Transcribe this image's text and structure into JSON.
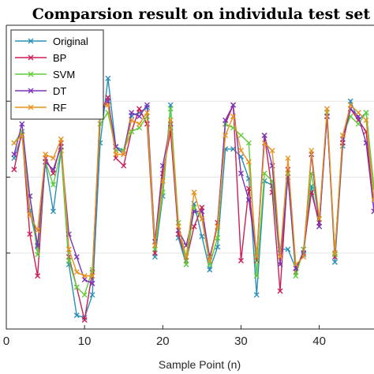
{
  "chart_data": {
    "type": "line",
    "title": "Comparsion result on individula test set",
    "xlabel": "Sample Point (n)",
    "ylabel": "",
    "xlim": [
      0,
      47
    ],
    "ylim": [
      0,
      4
    ],
    "xticks": [
      0,
      10,
      20,
      30,
      40
    ],
    "grid": true,
    "legend": "top-left",
    "x": [
      1,
      2,
      3,
      4,
      5,
      6,
      7,
      8,
      9,
      10,
      11,
      12,
      13,
      14,
      15,
      16,
      17,
      18,
      19,
      20,
      21,
      22,
      23,
      24,
      25,
      26,
      27,
      28,
      29,
      30,
      31,
      32,
      33,
      34,
      35,
      36,
      37,
      38,
      39,
      40,
      41,
      42,
      43,
      44,
      45,
      46,
      47
    ],
    "series": [
      {
        "name": "Original",
        "color": "#2a8fb8",
        "values": [
          2.25,
          2.56,
          1.56,
          1.08,
          2.2,
          1.55,
          2.35,
          0.85,
          0.18,
          0.15,
          0.45,
          2.45,
          3.3,
          2.4,
          2.35,
          2.81,
          2.85,
          2.92,
          0.95,
          1.75,
          2.95,
          1.2,
          0.85,
          1.65,
          1.22,
          0.78,
          1.08,
          2.37,
          2.37,
          2.27,
          1.98,
          0.45,
          1.95,
          1.89,
          1.05,
          1.05,
          0.8,
          0.98,
          1.88,
          1.35,
          2.85,
          0.88,
          2.41,
          3.0,
          2.75,
          2.85,
          1.85
        ]
      },
      {
        "name": "BP",
        "color": "#cc1f55",
        "values": [
          2.1,
          2.6,
          1.25,
          0.7,
          2.25,
          2.05,
          2.45,
          0.95,
          0.55,
          0.12,
          0.75,
          2.85,
          3.05,
          2.25,
          2.15,
          2.6,
          2.9,
          2.7,
          1.0,
          2.05,
          2.6,
          1.25,
          0.9,
          1.35,
          1.6,
          0.9,
          1.4,
          2.7,
          2.95,
          0.9,
          1.85,
          0.9,
          2.55,
          1.8,
          0.5,
          2.1,
          0.75,
          1.05,
          1.8,
          1.4,
          2.8,
          0.95,
          2.45,
          2.9,
          2.75,
          2.6,
          1.55
        ]
      },
      {
        "name": "SVM",
        "color": "#5fcd3a",
        "values": [
          2.45,
          2.6,
          1.75,
          0.98,
          2.2,
          1.9,
          2.35,
          0.9,
          0.55,
          0.45,
          0.78,
          2.7,
          2.85,
          2.35,
          2.35,
          2.6,
          2.65,
          2.8,
          1.05,
          1.8,
          2.9,
          1.4,
          0.85,
          1.6,
          1.45,
          0.85,
          1.2,
          2.7,
          2.65,
          2.55,
          2.45,
          0.7,
          2.05,
          1.95,
          0.85,
          2.05,
          0.7,
          1.05,
          2.05,
          1.45,
          2.85,
          0.98,
          2.55,
          2.8,
          2.7,
          2.85,
          1.85
        ]
      },
      {
        "name": "DT",
        "color": "#7b33b8",
        "values": [
          2.3,
          2.7,
          1.75,
          1.1,
          2.2,
          2.1,
          2.4,
          1.25,
          0.95,
          0.65,
          0.6,
          2.85,
          3.0,
          2.4,
          2.3,
          2.85,
          2.8,
          2.95,
          1.15,
          2.15,
          2.7,
          1.3,
          1.1,
          1.55,
          1.55,
          0.95,
          1.35,
          2.75,
          2.95,
          2.05,
          1.7,
          0.95,
          2.55,
          2.15,
          0.85,
          2.0,
          0.8,
          1.0,
          2.3,
          1.35,
          2.8,
          1.0,
          2.5,
          2.9,
          2.8,
          2.45,
          1.55
        ]
      },
      {
        "name": "RF",
        "color": "#e8921c",
        "values": [
          2.45,
          2.55,
          1.5,
          1.3,
          2.3,
          2.25,
          2.5,
          1.05,
          0.75,
          0.7,
          0.7,
          2.95,
          2.95,
          2.3,
          2.3,
          2.75,
          2.7,
          2.85,
          1.1,
          1.95,
          2.75,
          1.35,
          0.95,
          1.8,
          1.45,
          0.9,
          1.35,
          2.55,
          2.8,
          2.35,
          2.2,
          0.95,
          2.45,
          2.35,
          0.95,
          2.25,
          0.85,
          0.95,
          2.35,
          1.45,
          2.9,
          1.0,
          2.55,
          2.95,
          2.85,
          2.75,
          1.7
        ]
      }
    ]
  }
}
